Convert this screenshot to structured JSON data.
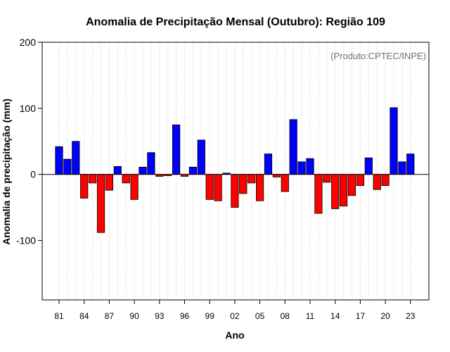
{
  "chart_data": {
    "type": "bar",
    "title": "Anomalia de Precipitação Mensal (Outubro): Região 109",
    "watermark": "(Produto:CPTEC/INPE)",
    "xlabel": "Ano",
    "ylabel": "Anomalia de precipitação (mm)",
    "ylim": [
      -190,
      200
    ],
    "yticks": [
      200,
      100,
      0,
      -100
    ],
    "xtick_labels": [
      {
        "year": 1981,
        "label": "81"
      },
      {
        "year": 1984,
        "label": "84"
      },
      {
        "year": 1987,
        "label": "87"
      },
      {
        "year": 1990,
        "label": "90"
      },
      {
        "year": 1993,
        "label": "93"
      },
      {
        "year": 1996,
        "label": "96"
      },
      {
        "year": 1999,
        "label": "99"
      },
      {
        "year": 2002,
        "label": "02"
      },
      {
        "year": 2005,
        "label": "05"
      },
      {
        "year": 2008,
        "label": "08"
      },
      {
        "year": 2011,
        "label": "11"
      },
      {
        "year": 2014,
        "label": "14"
      },
      {
        "year": 2017,
        "label": "17"
      },
      {
        "year": 2020,
        "label": "20"
      },
      {
        "year": 2023,
        "label": "23"
      }
    ],
    "years": [
      1981,
      1982,
      1983,
      1984,
      1985,
      1986,
      1987,
      1988,
      1989,
      1990,
      1991,
      1992,
      1993,
      1994,
      1995,
      1996,
      1997,
      1998,
      1999,
      2000,
      2001,
      2002,
      2003,
      2004,
      2005,
      2006,
      2007,
      2008,
      2009,
      2010,
      2011,
      2012,
      2013,
      2014,
      2015,
      2016,
      2017,
      2018,
      2019,
      2020,
      2021,
      2022,
      2023
    ],
    "values": [
      42,
      23,
      50,
      -36,
      -13,
      -88,
      -24,
      12,
      -13,
      -38,
      11,
      33,
      -3,
      -2,
      75,
      -3,
      11,
      52,
      -38,
      -40,
      2,
      -50,
      -29,
      -13,
      -40,
      31,
      -4,
      -26,
      83,
      19,
      24,
      -59,
      -12,
      -52,
      -48,
      -32,
      -17,
      25,
      -23,
      -17,
      101,
      19,
      31
    ],
    "colors": {
      "positive": "#0000ff",
      "negative": "#ff0000",
      "grid": "#c8c8c8"
    },
    "grid": true
  }
}
